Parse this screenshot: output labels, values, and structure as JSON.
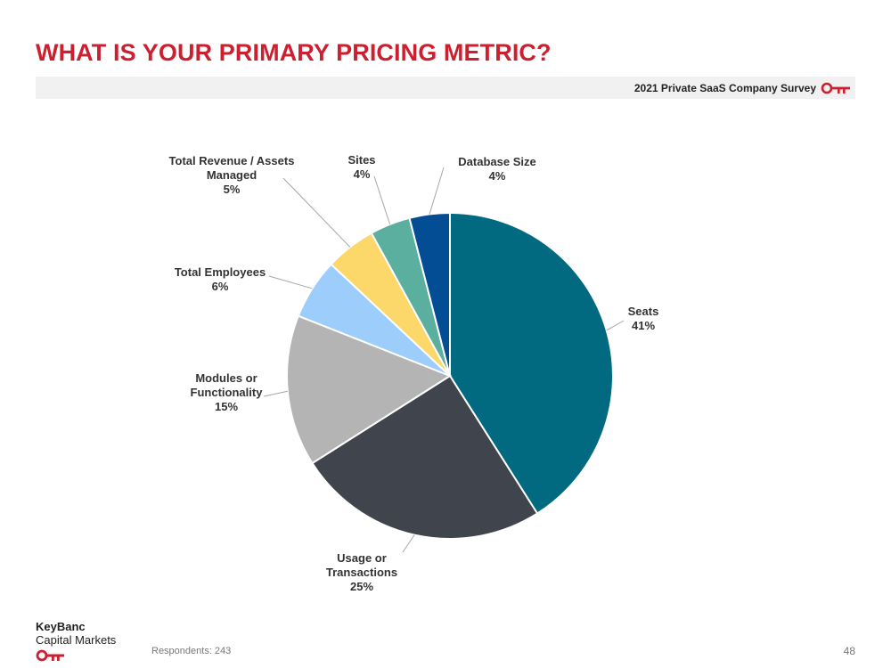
{
  "header": {
    "title": "WHAT IS YOUR PRIMARY PRICING METRIC?",
    "survey": "2021 Private SaaS Company Survey"
  },
  "brand": {
    "name": "KeyBanc",
    "sub": "Capital Markets",
    "key_color": "#cc1f2f",
    "icon": "key-icon"
  },
  "footer": {
    "respondents": "Respondents: 243",
    "page_number": "48"
  },
  "chart_data": {
    "type": "pie",
    "title": "",
    "slices": [
      {
        "label": [
          "Seats"
        ],
        "value": 41,
        "display": "41%",
        "color": "#016a80"
      },
      {
        "label": [
          "Usage or",
          "Transactions"
        ],
        "value": 25,
        "display": "25%",
        "color": "#40444c"
      },
      {
        "label": [
          "Modules or",
          "Functionality"
        ],
        "value": 15,
        "display": "15%",
        "color": "#b4b4b4"
      },
      {
        "label": [
          "Total Employees"
        ],
        "value": 6,
        "display": "6%",
        "color": "#9ccdfb"
      },
      {
        "label": [
          "Total Revenue / Assets",
          "Managed"
        ],
        "value": 5,
        "display": "5%",
        "color": "#fcd76a"
      },
      {
        "label": [
          "Sites"
        ],
        "value": 4,
        "display": "4%",
        "color": "#5aaf9e"
      },
      {
        "label": [
          "Database Size"
        ],
        "value": 4,
        "display": "4%",
        "color": "#024d94"
      }
    ],
    "start": "12 o'clock",
    "direction": "clockwise",
    "legend": "none",
    "data_labels": "outside with leader lines"
  }
}
